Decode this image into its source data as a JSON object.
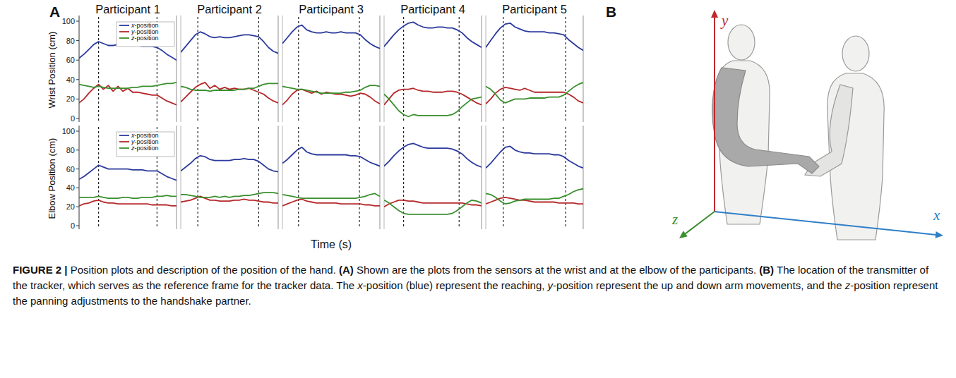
{
  "chart_data": [
    {
      "type": "line",
      "title": "Participant 1",
      "y_label": "Wrist Position (cm)",
      "x": [
        0,
        1,
        2,
        3,
        4,
        5,
        6,
        7,
        8,
        9,
        10,
        11,
        12,
        13,
        14,
        15,
        16,
        17,
        18,
        19,
        20
      ],
      "xlim": [
        0,
        20
      ],
      "ylim": [
        0,
        100
      ],
      "yticks": [
        0,
        20,
        40,
        60,
        80,
        100
      ],
      "tick_labels": "y",
      "legend": "upper right",
      "vlines": [
        4,
        16
      ],
      "series": [
        {
          "name": "x-position",
          "color": "#2b3a9c",
          "values": [
            62,
            66,
            71,
            76,
            79,
            77,
            75,
            75,
            76,
            76,
            75,
            75,
            75,
            74,
            74,
            74,
            73,
            70,
            66,
            63,
            60
          ]
        },
        {
          "name": "y-position",
          "color": "#b5282a",
          "values": [
            16,
            20,
            26,
            31,
            35,
            30,
            34,
            28,
            33,
            28,
            31,
            27,
            27,
            26,
            25,
            24,
            24,
            21,
            18,
            16,
            14
          ]
        },
        {
          "name": "z-position",
          "color": "#3a8f2e",
          "values": [
            35,
            34,
            33,
            32,
            33,
            32,
            31,
            31,
            31,
            31,
            31,
            32,
            32,
            33,
            33,
            33,
            34,
            35,
            36,
            36,
            37
          ]
        }
      ]
    },
    {
      "type": "line",
      "title": "Participant 2",
      "x": [
        0,
        1,
        2,
        3,
        4,
        5,
        6,
        7,
        8,
        9,
        10,
        11,
        12,
        13,
        14,
        15,
        16,
        17,
        18,
        19,
        20
      ],
      "xlim": [
        0,
        20
      ],
      "ylim": [
        0,
        100
      ],
      "tick_labels": false,
      "vlines": [
        3.5,
        16
      ],
      "series": [
        {
          "color": "#2b3a9c",
          "values": [
            68,
            74,
            80,
            86,
            89,
            87,
            84,
            83,
            84,
            83,
            83,
            84,
            85,
            86,
            86,
            85,
            84,
            79,
            73,
            69,
            67
          ]
        },
        {
          "color": "#b5282a",
          "values": [
            17,
            22,
            27,
            32,
            35,
            37,
            31,
            34,
            30,
            32,
            30,
            31,
            30,
            30,
            31,
            29,
            27,
            25,
            21,
            18,
            16
          ]
        },
        {
          "color": "#3a8f2e",
          "values": [
            33,
            32,
            30,
            29,
            29,
            29,
            28,
            29,
            29,
            29,
            29,
            29,
            30,
            30,
            31,
            31,
            33,
            35,
            36,
            36,
            36
          ]
        }
      ]
    },
    {
      "type": "line",
      "title": "Participant 3",
      "x": [
        0,
        1,
        2,
        3,
        4,
        5,
        6,
        7,
        8,
        9,
        10,
        11,
        12,
        13,
        14,
        15,
        16,
        17,
        18,
        19,
        20
      ],
      "xlim": [
        0,
        20
      ],
      "ylim": [
        0,
        100
      ],
      "tick_labels": false,
      "vlines": [
        3.3,
        15.8
      ],
      "series": [
        {
          "color": "#2b3a9c",
          "values": [
            77,
            83,
            89,
            94,
            96,
            91,
            89,
            88,
            88,
            89,
            88,
            88,
            89,
            88,
            88,
            88,
            86,
            81,
            77,
            74,
            72
          ]
        },
        {
          "color": "#b5282a",
          "values": [
            14,
            19,
            25,
            29,
            30,
            28,
            26,
            28,
            25,
            27,
            26,
            25,
            25,
            24,
            23,
            24,
            26,
            25,
            22,
            18,
            15
          ]
        },
        {
          "color": "#3a8f2e",
          "values": [
            33,
            32,
            31,
            30,
            30,
            29,
            28,
            27,
            26,
            26,
            26,
            26,
            26,
            27,
            27,
            28,
            29,
            32,
            34,
            34,
            33
          ]
        }
      ]
    },
    {
      "type": "line",
      "title": "Participant 4",
      "x": [
        0,
        1,
        2,
        3,
        4,
        5,
        6,
        7,
        8,
        9,
        10,
        11,
        12,
        13,
        14,
        15,
        16,
        17,
        18,
        19,
        20
      ],
      "xlim": [
        0,
        20
      ],
      "ylim": [
        0,
        100
      ],
      "tick_labels": false,
      "vlines": [
        4,
        15.4
      ],
      "series": [
        {
          "color": "#2b3a9c",
          "values": [
            74,
            80,
            86,
            91,
            95,
            98,
            99,
            96,
            94,
            93,
            93,
            94,
            94,
            93,
            93,
            91,
            88,
            83,
            79,
            76,
            73
          ]
        },
        {
          "color": "#b5282a",
          "values": [
            14,
            20,
            26,
            29,
            30,
            30,
            31,
            29,
            28,
            28,
            27,
            27,
            27,
            28,
            28,
            27,
            25,
            22,
            19,
            16,
            14
          ]
        },
        {
          "color": "#3a8f2e",
          "values": [
            25,
            20,
            14,
            8,
            4,
            2,
            4,
            3,
            3,
            3,
            3,
            3,
            3,
            3,
            4,
            7,
            12,
            16,
            20,
            21,
            22
          ]
        }
      ]
    },
    {
      "type": "line",
      "title": "Participant 5",
      "x": [
        0,
        1,
        2,
        3,
        4,
        5,
        6,
        7,
        8,
        9,
        10,
        11,
        12,
        13,
        14,
        15,
        16,
        17,
        18,
        19,
        20
      ],
      "xlim": [
        0,
        20
      ],
      "ylim": [
        0,
        100
      ],
      "tick_labels": false,
      "vlines": [
        3.6,
        16.4
      ],
      "series": [
        {
          "color": "#2b3a9c",
          "values": [
            73,
            80,
            87,
            93,
            97,
            98,
            94,
            92,
            90,
            89,
            89,
            89,
            89,
            88,
            88,
            87,
            86,
            81,
            77,
            73,
            70
          ]
        },
        {
          "color": "#b5282a",
          "values": [
            15,
            20,
            26,
            30,
            32,
            31,
            30,
            29,
            31,
            29,
            27,
            27,
            27,
            27,
            27,
            27,
            27,
            25,
            22,
            18,
            16
          ]
        },
        {
          "color": "#3a8f2e",
          "values": [
            33,
            30,
            25,
            19,
            16,
            18,
            20,
            20,
            20,
            21,
            21,
            21,
            21,
            22,
            22,
            22,
            24,
            28,
            32,
            35,
            37
          ]
        }
      ]
    },
    {
      "type": "line",
      "y_label": "Elbow Position (cm)",
      "x": [
        0,
        1,
        2,
        3,
        4,
        5,
        6,
        7,
        8,
        9,
        10,
        11,
        12,
        13,
        14,
        15,
        16,
        17,
        18,
        19,
        20
      ],
      "xlim": [
        0,
        20
      ],
      "ylim": [
        0,
        100
      ],
      "yticks": [
        0,
        20,
        40,
        60,
        80,
        100
      ],
      "tick_labels": "y",
      "legend": "upper right",
      "vlines": [
        4,
        16
      ],
      "series": [
        {
          "name": "x-position",
          "color": "#2b3a9c",
          "values": [
            49,
            52,
            56,
            60,
            64,
            62,
            60,
            60,
            60,
            60,
            60,
            59,
            59,
            59,
            58,
            58,
            58,
            55,
            52,
            50,
            48
          ]
        },
        {
          "name": "y-position",
          "color": "#b5282a",
          "values": [
            21,
            23,
            24,
            26,
            27,
            25,
            24,
            24,
            23,
            23,
            23,
            23,
            23,
            23,
            23,
            22,
            22,
            22,
            22,
            21,
            21
          ]
        },
        {
          "name": "z-position",
          "color": "#3a8f2e",
          "values": [
            30,
            30,
            30,
            30,
            31,
            30,
            29,
            29,
            29,
            30,
            30,
            29,
            29,
            30,
            30,
            30,
            31,
            31,
            32,
            31,
            31
          ]
        }
      ]
    },
    {
      "type": "line",
      "x": [
        0,
        1,
        2,
        3,
        4,
        5,
        6,
        7,
        8,
        9,
        10,
        11,
        12,
        13,
        14,
        15,
        16,
        17,
        18,
        19,
        20
      ],
      "xlim": [
        0,
        20
      ],
      "ylim": [
        0,
        100
      ],
      "tick_labels": false,
      "vlines": [
        3.5,
        16
      ],
      "series": [
        {
          "color": "#2b3a9c",
          "values": [
            58,
            62,
            66,
            71,
            74,
            73,
            70,
            69,
            69,
            69,
            69,
            70,
            70,
            71,
            70,
            70,
            68,
            64,
            60,
            58,
            57
          ]
        },
        {
          "color": "#b5282a",
          "values": [
            25,
            26,
            27,
            29,
            31,
            29,
            27,
            27,
            26,
            26,
            26,
            27,
            27,
            28,
            27,
            27,
            26,
            25,
            25,
            24,
            24
          ]
        },
        {
          "color": "#3a8f2e",
          "values": [
            33,
            33,
            32,
            31,
            30,
            30,
            30,
            31,
            30,
            31,
            30,
            31,
            31,
            32,
            32,
            33,
            34,
            35,
            35,
            35,
            34
          ]
        }
      ]
    },
    {
      "type": "line",
      "x": [
        0,
        1,
        2,
        3,
        4,
        5,
        6,
        7,
        8,
        9,
        10,
        11,
        12,
        13,
        14,
        15,
        16,
        17,
        18,
        19,
        20
      ],
      "xlim": [
        0,
        20
      ],
      "ylim": [
        0,
        100
      ],
      "tick_labels": false,
      "vlines": [
        3.3,
        15.8
      ],
      "series": [
        {
          "color": "#2b3a9c",
          "values": [
            66,
            70,
            75,
            80,
            83,
            78,
            76,
            75,
            75,
            75,
            75,
            75,
            75,
            75,
            74,
            74,
            73,
            70,
            67,
            65,
            63
          ]
        },
        {
          "color": "#b5282a",
          "values": [
            21,
            23,
            25,
            27,
            28,
            26,
            25,
            24,
            24,
            24,
            24,
            24,
            23,
            23,
            23,
            23,
            23,
            22,
            22,
            21,
            21
          ]
        },
        {
          "color": "#3a8f2e",
          "values": [
            33,
            32,
            31,
            30,
            29,
            29,
            29,
            29,
            29,
            29,
            29,
            29,
            29,
            29,
            29,
            29,
            30,
            31,
            33,
            34,
            31
          ]
        }
      ]
    },
    {
      "type": "line",
      "x": [
        0,
        1,
        2,
        3,
        4,
        5,
        6,
        7,
        8,
        9,
        10,
        11,
        12,
        13,
        14,
        15,
        16,
        17,
        18,
        19,
        20
      ],
      "xlim": [
        0,
        20
      ],
      "ylim": [
        0,
        100
      ],
      "tick_labels": false,
      "vlines": [
        4,
        15.4
      ],
      "series": [
        {
          "color": "#2b3a9c",
          "values": [
            63,
            68,
            74,
            79,
            83,
            86,
            87,
            85,
            83,
            82,
            82,
            82,
            82,
            82,
            81,
            79,
            76,
            71,
            67,
            64,
            62
          ]
        },
        {
          "color": "#b5282a",
          "values": [
            20,
            23,
            25,
            27,
            27,
            26,
            26,
            25,
            24,
            24,
            24,
            24,
            24,
            24,
            24,
            24,
            24,
            23,
            22,
            22,
            21
          ]
        },
        {
          "color": "#3a8f2e",
          "values": [
            27,
            24,
            20,
            16,
            13,
            12,
            12,
            12,
            12,
            12,
            12,
            12,
            12,
            12,
            13,
            16,
            20,
            24,
            27,
            26,
            24
          ]
        }
      ]
    },
    {
      "type": "line",
      "x": [
        0,
        1,
        2,
        3,
        4,
        5,
        6,
        7,
        8,
        9,
        10,
        11,
        12,
        13,
        14,
        15,
        16,
        17,
        18,
        19,
        20
      ],
      "xlim": [
        0,
        20
      ],
      "ylim": [
        0,
        100
      ],
      "tick_labels": false,
      "vlines": [
        3.6,
        16.4
      ],
      "series": [
        {
          "color": "#2b3a9c",
          "values": [
            61,
            66,
            72,
            78,
            83,
            84,
            80,
            78,
            77,
            77,
            76,
            76,
            76,
            76,
            75,
            75,
            73,
            69,
            66,
            63,
            61
          ]
        },
        {
          "color": "#b5282a",
          "values": [
            23,
            25,
            27,
            29,
            30,
            29,
            28,
            27,
            27,
            26,
            25,
            25,
            25,
            25,
            25,
            24,
            24,
            24,
            24,
            23,
            23
          ]
        },
        {
          "color": "#3a8f2e",
          "values": [
            34,
            33,
            30,
            26,
            23,
            24,
            26,
            27,
            28,
            28,
            28,
            28,
            28,
            28,
            29,
            29,
            31,
            33,
            36,
            38,
            39
          ]
        }
      ]
    }
  ],
  "figure": {
    "panel_labels": [
      "A",
      "B"
    ],
    "x_label": "Time (s)",
    "diagram_axes": [
      {
        "label": "y",
        "color": "#c0272d"
      },
      {
        "label": "z",
        "color": "#3a8f2e"
      },
      {
        "label": "x",
        "color": "#2f7fc8"
      }
    ],
    "caption": [
      {
        "text": "FIGURE 2 |",
        "style": "bold"
      },
      {
        "text": " Position plots and description of the position of the hand. ",
        "style": "normal"
      },
      {
        "text": "(A)",
        "style": "bold"
      },
      {
        "text": " Shown are the plots from the sensors at the wrist and at the elbow of the participants. ",
        "style": "normal"
      },
      {
        "text": "(B)",
        "style": "bold"
      },
      {
        "text": " The location of the transmitter of the tracker, which serves as the reference frame for the tracker data. The ",
        "style": "normal"
      },
      {
        "text": "x",
        "style": "italic"
      },
      {
        "text": "-position (blue) represent the reaching, ",
        "style": "normal"
      },
      {
        "text": "y",
        "style": "italic"
      },
      {
        "text": "-position represent the up and down arm movements, and the ",
        "style": "normal"
      },
      {
        "text": "z",
        "style": "italic"
      },
      {
        "text": "-position represent the panning adjustments to the handshake partner.",
        "style": "normal"
      }
    ]
  }
}
